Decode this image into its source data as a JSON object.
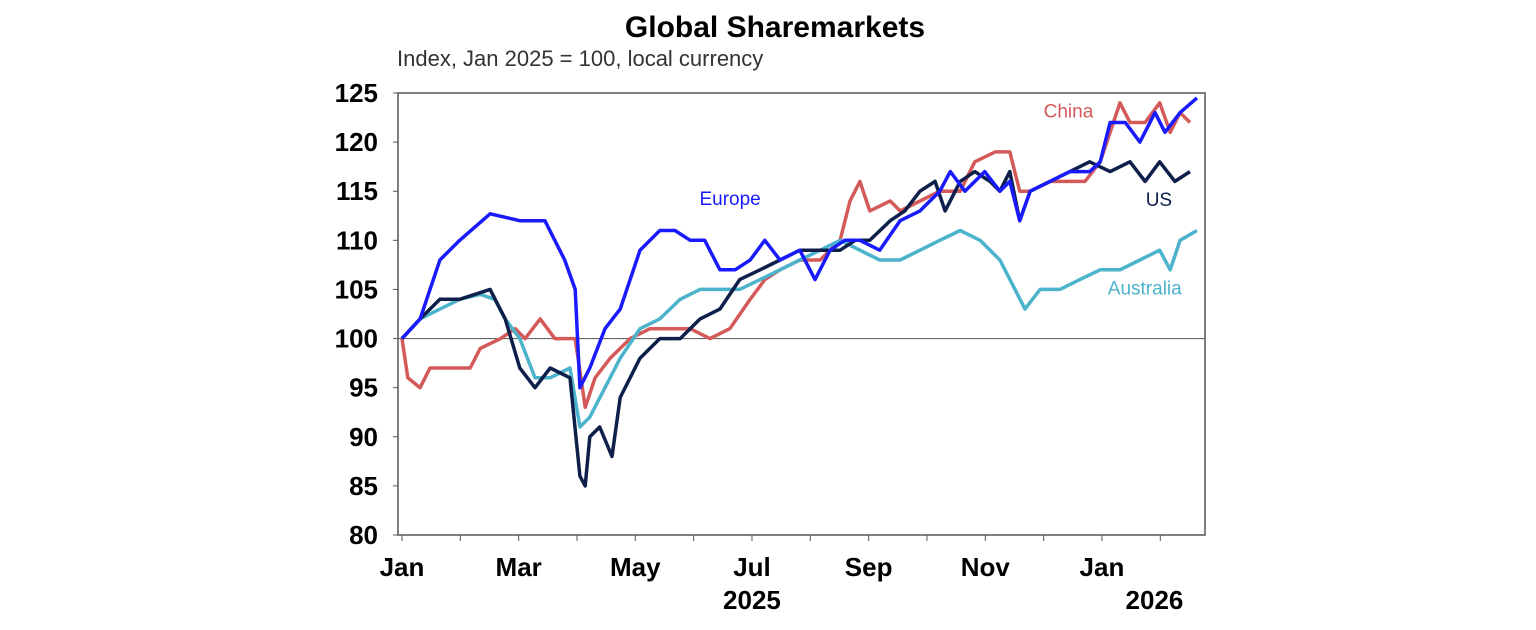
{
  "chart_data": {
    "type": "line",
    "title": "Global Sharemarkets",
    "subtitle": "Index, Jan 2025 = 100, local currency",
    "xlabel": "",
    "ylabel": "",
    "x_unit": "months since Jan 2025",
    "xlim": [
      0,
      13.8
    ],
    "ylim": [
      80,
      125
    ],
    "yticks": [
      80,
      85,
      90,
      95,
      100,
      105,
      110,
      115,
      120,
      125
    ],
    "ytick_labels": [
      "80",
      "85",
      "90",
      "95",
      "100",
      "105",
      "110",
      "115",
      "120",
      "125"
    ],
    "xticks": [
      0,
      2,
      4,
      6,
      8,
      10,
      12
    ],
    "xtick_labels": [
      "Jan",
      "Mar",
      "May",
      "Jul",
      "Sep",
      "Nov",
      "Jan"
    ],
    "year_labels": [
      {
        "x": 6,
        "text": "2025"
      },
      {
        "x": 12.9,
        "text": "2026"
      }
    ],
    "reference_line": 100,
    "grid": false,
    "series": [
      {
        "name": "Europe",
        "color": "#1a1aff",
        "label_pos": [
          5.1,
          113.6
        ],
        "points": [
          [
            0,
            100
          ],
          [
            0.31,
            102
          ],
          [
            0.65,
            108
          ],
          [
            0.99,
            110
          ],
          [
            1.51,
            112.7
          ],
          [
            2.02,
            112
          ],
          [
            2.45,
            112
          ],
          [
            2.79,
            108
          ],
          [
            2.97,
            105
          ],
          [
            3.05,
            95
          ],
          [
            3.22,
            97
          ],
          [
            3.48,
            101
          ],
          [
            3.74,
            103
          ],
          [
            4.08,
            109
          ],
          [
            4.42,
            111
          ],
          [
            4.68,
            111
          ],
          [
            4.94,
            110
          ],
          [
            5.19,
            110
          ],
          [
            5.45,
            107
          ],
          [
            5.71,
            107
          ],
          [
            5.97,
            108
          ],
          [
            6.22,
            110
          ],
          [
            6.48,
            108
          ],
          [
            6.82,
            109
          ],
          [
            7.08,
            106
          ],
          [
            7.34,
            109
          ],
          [
            7.59,
            110
          ],
          [
            7.85,
            110
          ],
          [
            8.19,
            109
          ],
          [
            8.54,
            112
          ],
          [
            8.88,
            113
          ],
          [
            9.22,
            115
          ],
          [
            9.4,
            117
          ],
          [
            9.65,
            115
          ],
          [
            9.99,
            117
          ],
          [
            10.25,
            115
          ],
          [
            10.42,
            116
          ],
          [
            10.59,
            112
          ],
          [
            10.77,
            115
          ],
          [
            11.11,
            116
          ],
          [
            11.45,
            117
          ],
          [
            11.79,
            117
          ],
          [
            11.97,
            118
          ],
          [
            12.14,
            122
          ],
          [
            12.4,
            122
          ],
          [
            12.65,
            120
          ],
          [
            12.91,
            123
          ],
          [
            13.08,
            121
          ],
          [
            13.34,
            123
          ],
          [
            13.63,
            124.5
          ]
        ]
      },
      {
        "name": "US",
        "color": "#0d1f4a",
        "label_pos": [
          12.75,
          113.5
        ],
        "points": [
          [
            0,
            100
          ],
          [
            0.31,
            102
          ],
          [
            0.65,
            104
          ],
          [
            0.99,
            104
          ],
          [
            1.51,
            105
          ],
          [
            1.77,
            102
          ],
          [
            2.02,
            97
          ],
          [
            2.28,
            95
          ],
          [
            2.54,
            97
          ],
          [
            2.88,
            96
          ],
          [
            3.05,
            86
          ],
          [
            3.14,
            85
          ],
          [
            3.22,
            90
          ],
          [
            3.39,
            91
          ],
          [
            3.6,
            88
          ],
          [
            3.74,
            94
          ],
          [
            4.08,
            98
          ],
          [
            4.42,
            100
          ],
          [
            4.77,
            100
          ],
          [
            5.11,
            102
          ],
          [
            5.45,
            103
          ],
          [
            5.79,
            106
          ],
          [
            6.14,
            107
          ],
          [
            6.48,
            108
          ],
          [
            6.82,
            109
          ],
          [
            7.17,
            109
          ],
          [
            7.51,
            109
          ],
          [
            7.77,
            110
          ],
          [
            8.02,
            110
          ],
          [
            8.37,
            112
          ],
          [
            8.62,
            113
          ],
          [
            8.88,
            115
          ],
          [
            9.14,
            116
          ],
          [
            9.31,
            113
          ],
          [
            9.57,
            116
          ],
          [
            9.82,
            117
          ],
          [
            10.08,
            116
          ],
          [
            10.25,
            115
          ],
          [
            10.42,
            117
          ],
          [
            10.59,
            112
          ],
          [
            10.77,
            115
          ],
          [
            11.11,
            116
          ],
          [
            11.45,
            117
          ],
          [
            11.79,
            118
          ],
          [
            12.14,
            117
          ],
          [
            12.48,
            118
          ],
          [
            12.74,
            116
          ],
          [
            12.99,
            118
          ],
          [
            13.25,
            116
          ],
          [
            13.51,
            117
          ]
        ]
      },
      {
        "name": "Australia",
        "color": "#4bb3cc",
        "label_pos": [
          12.1,
          104.5
        ],
        "points": [
          [
            0,
            100
          ],
          [
            0.31,
            102
          ],
          [
            0.65,
            103
          ],
          [
            0.99,
            104
          ],
          [
            1.34,
            104.5
          ],
          [
            1.59,
            104
          ],
          [
            1.77,
            102
          ],
          [
            2.02,
            100
          ],
          [
            2.28,
            96
          ],
          [
            2.54,
            96
          ],
          [
            2.88,
            97
          ],
          [
            3.05,
            91
          ],
          [
            3.22,
            92
          ],
          [
            3.48,
            95
          ],
          [
            3.74,
            98
          ],
          [
            4.08,
            101
          ],
          [
            4.42,
            102
          ],
          [
            4.77,
            104
          ],
          [
            5.11,
            105
          ],
          [
            5.45,
            105
          ],
          [
            5.79,
            105
          ],
          [
            6.14,
            106
          ],
          [
            6.48,
            107
          ],
          [
            6.82,
            108
          ],
          [
            7.17,
            109
          ],
          [
            7.51,
            110
          ],
          [
            7.85,
            109
          ],
          [
            8.19,
            108
          ],
          [
            8.54,
            108
          ],
          [
            8.88,
            109
          ],
          [
            9.22,
            110
          ],
          [
            9.57,
            111
          ],
          [
            9.91,
            110
          ],
          [
            10.25,
            108
          ],
          [
            10.51,
            105
          ],
          [
            10.68,
            103
          ],
          [
            10.94,
            105
          ],
          [
            11.28,
            105
          ],
          [
            11.62,
            106
          ],
          [
            11.97,
            107
          ],
          [
            12.31,
            107
          ],
          [
            12.65,
            108
          ],
          [
            12.99,
            109
          ],
          [
            13.17,
            107
          ],
          [
            13.34,
            110
          ],
          [
            13.63,
            111
          ]
        ]
      },
      {
        "name": "China",
        "color": "#d45a5a",
        "label_pos": [
          11.0,
          122.5
        ],
        "points": [
          [
            0,
            100
          ],
          [
            0.1,
            96
          ],
          [
            0.31,
            95
          ],
          [
            0.48,
            97
          ],
          [
            0.82,
            97
          ],
          [
            1.17,
            97
          ],
          [
            1.34,
            99
          ],
          [
            1.69,
            100
          ],
          [
            1.94,
            101
          ],
          [
            2.11,
            100
          ],
          [
            2.37,
            102
          ],
          [
            2.62,
            100
          ],
          [
            2.97,
            100
          ],
          [
            3.14,
            93
          ],
          [
            3.31,
            96
          ],
          [
            3.57,
            98
          ],
          [
            3.91,
            100
          ],
          [
            4.25,
            101
          ],
          [
            4.59,
            101
          ],
          [
            4.94,
            101
          ],
          [
            5.28,
            100
          ],
          [
            5.62,
            101
          ],
          [
            5.97,
            104
          ],
          [
            6.22,
            106
          ],
          [
            6.48,
            107
          ],
          [
            6.82,
            108
          ],
          [
            7.17,
            108
          ],
          [
            7.51,
            110
          ],
          [
            7.68,
            114
          ],
          [
            7.85,
            116
          ],
          [
            8.02,
            113
          ],
          [
            8.37,
            114
          ],
          [
            8.54,
            113
          ],
          [
            8.88,
            114
          ],
          [
            9.22,
            115
          ],
          [
            9.57,
            115
          ],
          [
            9.82,
            118
          ],
          [
            10.17,
            119
          ],
          [
            10.42,
            119
          ],
          [
            10.59,
            115
          ],
          [
            10.77,
            115
          ],
          [
            11.11,
            116
          ],
          [
            11.45,
            116
          ],
          [
            11.71,
            116
          ],
          [
            11.97,
            118
          ],
          [
            12.14,
            121
          ],
          [
            12.31,
            124
          ],
          [
            12.48,
            122
          ],
          [
            12.74,
            122
          ],
          [
            12.99,
            124
          ],
          [
            13.17,
            121
          ],
          [
            13.34,
            123
          ],
          [
            13.51,
            122
          ]
        ]
      }
    ]
  }
}
